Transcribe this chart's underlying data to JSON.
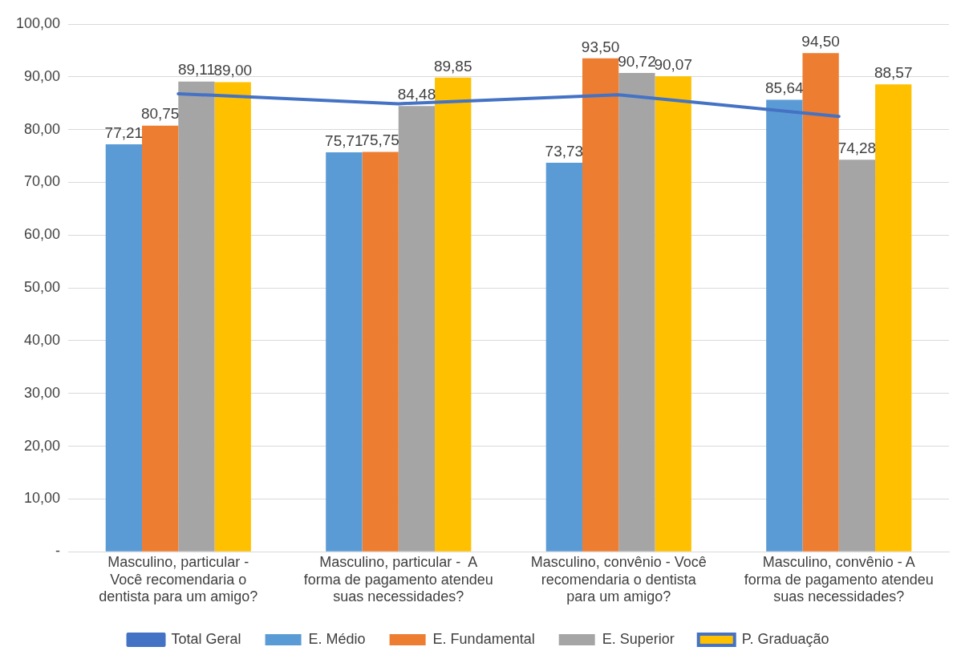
{
  "chart_data": {
    "type": "bar",
    "categories": [
      "Masculino, particular - Você recomendaria o dentista para um amigo?",
      "Masculino, particular -  A forma de pagamento atendeu suas necessidades?",
      "Masculino, convênio - Você recomendaria o dentista para um amigo?",
      "Masculino, convênio - A forma de pagamento atendeu suas necessidades?"
    ],
    "series": [
      {
        "name": "E. Médio",
        "color": "#5b9bd5",
        "values": [
          77.21,
          75.71,
          73.73,
          85.64
        ],
        "value_labels": [
          "77,21",
          "75,71",
          "73,73",
          "85,64"
        ]
      },
      {
        "name": "E. Fundamental",
        "color": "#ed7d31",
        "values": [
          80.75,
          75.75,
          93.5,
          94.5
        ],
        "value_labels": [
          "80,75",
          "75,75",
          "93,50",
          "94,50"
        ]
      },
      {
        "name": "E. Superior",
        "color": "#a5a5a5",
        "values": [
          89.11,
          84.48,
          90.72,
          74.28
        ],
        "value_labels": [
          "89,11",
          "84,48",
          "90,72",
          "74,28"
        ]
      },
      {
        "name": "P. Graduação",
        "color": "#ffc000",
        "values": [
          89.0,
          89.85,
          90.07,
          88.57
        ],
        "value_labels": [
          "89,00",
          "89,85",
          "90,07",
          "88,57"
        ]
      },
      {
        "name": "Total Geral",
        "type": "line",
        "color": "#4472c4",
        "values": [
          86.8,
          84.9,
          86.6,
          82.5
        ]
      }
    ],
    "ylim": [
      0,
      100
    ],
    "yticks": [
      {
        "value": 0,
        "label": "-"
      },
      {
        "value": 10,
        "label": "10,00"
      },
      {
        "value": 20,
        "label": "20,00"
      },
      {
        "value": 30,
        "label": "30,00"
      },
      {
        "value": 40,
        "label": "40,00"
      },
      {
        "value": 50,
        "label": "50,00"
      },
      {
        "value": 60,
        "label": "60,00"
      },
      {
        "value": 70,
        "label": "70,00"
      },
      {
        "value": 80,
        "label": "80,00"
      },
      {
        "value": 90,
        "label": "90,00"
      },
      {
        "value": 100,
        "label": "100,00"
      }
    ],
    "grid": "y",
    "legend": "bottom",
    "marker": "none",
    "line_style": "solid"
  }
}
